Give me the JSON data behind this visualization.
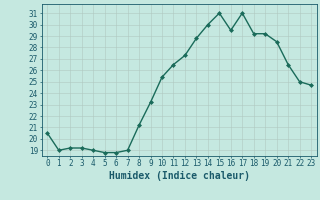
{
  "x": [
    0,
    1,
    2,
    3,
    4,
    5,
    6,
    7,
    8,
    9,
    10,
    11,
    12,
    13,
    14,
    15,
    16,
    17,
    18,
    19,
    20,
    21,
    22,
    23
  ],
  "y": [
    20.5,
    19.0,
    19.2,
    19.2,
    19.0,
    18.8,
    18.8,
    19.0,
    21.2,
    23.2,
    25.4,
    26.5,
    27.3,
    28.8,
    30.0,
    31.0,
    29.5,
    31.0,
    29.2,
    29.2,
    28.5,
    26.5,
    25.0,
    24.7
  ],
  "line_color": "#1a6b5a",
  "marker": "D",
  "marker_size": 2.0,
  "bg_color": "#c5e8e0",
  "grid_color": "#b0c8c0",
  "xlabel": "Humidex (Indice chaleur)",
  "ylim": [
    18.5,
    31.8
  ],
  "xlim": [
    -0.5,
    23.5
  ],
  "yticks": [
    19,
    20,
    21,
    22,
    23,
    24,
    25,
    26,
    27,
    28,
    29,
    30,
    31
  ],
  "xticks": [
    0,
    1,
    2,
    3,
    4,
    5,
    6,
    7,
    8,
    9,
    10,
    11,
    12,
    13,
    14,
    15,
    16,
    17,
    18,
    19,
    20,
    21,
    22,
    23
  ],
  "font_color": "#1a5a6a",
  "tick_fontsize": 5.5,
  "xlabel_fontsize": 7.0,
  "linewidth": 1.0
}
